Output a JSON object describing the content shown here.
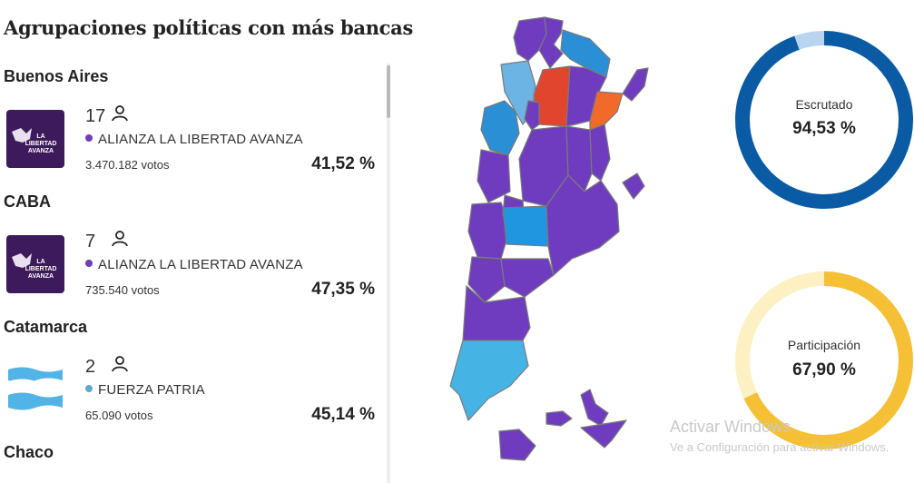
{
  "title": "Agrupaciones políticas con más bancas",
  "provinces": [
    {
      "name": "Buenos Aires",
      "seats": "17",
      "party": "ALIANZA LA LIBERTAD AVANZA",
      "party_color": "#6d3fb5",
      "votes": "3.470.182 votos",
      "percent": "41,52 %",
      "logo": "lla",
      "logo_text": [
        "LA",
        "LIBERTAD",
        "AVANZA"
      ]
    },
    {
      "name": "CABA",
      "seats": "7",
      "party": "ALIANZA LA LIBERTAD AVANZA",
      "party_color": "#6d3fb5",
      "votes": "735.540 votos",
      "percent": "47,35 %",
      "logo": "lla",
      "logo_text": [
        "LA",
        "LIBERTAD",
        "AVANZA"
      ]
    },
    {
      "name": "Catamarca",
      "seats": "2",
      "party": "FUERZA PATRIA",
      "party_color": "#5fa8d3",
      "votes": "65.090 votos",
      "percent": "45,14 %",
      "logo": "fp",
      "logo_text": []
    },
    {
      "name": "Chaco",
      "seats": "",
      "party": "",
      "party_color": "",
      "votes": "",
      "percent": "",
      "logo": "",
      "logo_text": []
    }
  ],
  "escrutado": {
    "label": "Escrutado",
    "value": "94,53 %",
    "fraction": 0.9453,
    "color": "#0a5ba3",
    "track": "#b9d4f0"
  },
  "participacion": {
    "label": "Participación",
    "value": "67,90 %",
    "fraction": 0.679,
    "color": "#f5c035",
    "track": "#fdf1c4"
  },
  "watermark": {
    "line1": "Activar Windows",
    "line2": "Ve a Configuración para activar Windows."
  },
  "colors": {
    "lla": "#6f3cbf",
    "fp_light": "#45b4e5",
    "fp_mid": "#2b8fd6",
    "red": "#e2452d",
    "orange": "#f26a2a",
    "map_stroke": "#7a7a7a"
  }
}
